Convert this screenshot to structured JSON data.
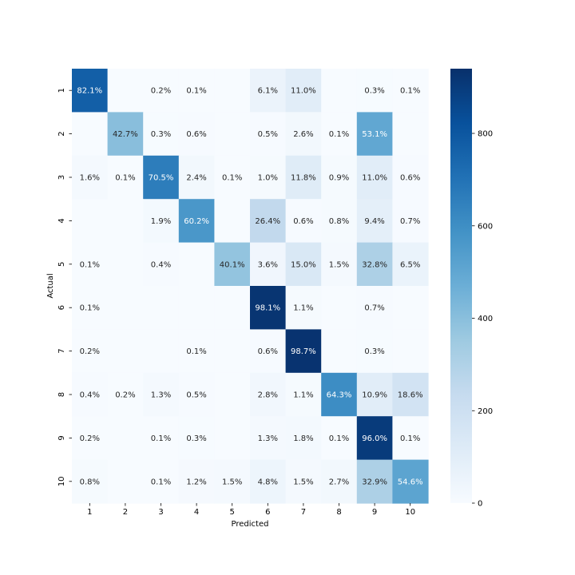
{
  "chart_data": {
    "type": "heatmap",
    "xlabel": "Predicted",
    "ylabel": "Actual",
    "x_labels": [
      "1",
      "2",
      "3",
      "4",
      "5",
      "6",
      "7",
      "8",
      "9",
      "10"
    ],
    "y_labels": [
      "1",
      "2",
      "3",
      "4",
      "5",
      "6",
      "7",
      "8",
      "9",
      "10"
    ],
    "colormap": "Blues",
    "colorbar": {
      "min": 0,
      "max": 940,
      "ticks": [
        0,
        200,
        400,
        600,
        800
      ]
    },
    "annotations": [
      [
        "82.1%",
        "",
        "0.2%",
        "0.1%",
        "",
        "6.1%",
        "11.0%",
        "",
        "0.3%",
        "0.1%"
      ],
      [
        "",
        "42.7%",
        "0.3%",
        "0.6%",
        "",
        "0.5%",
        "2.6%",
        "0.1%",
        "53.1%",
        ""
      ],
      [
        "1.6%",
        "0.1%",
        "70.5%",
        "2.4%",
        "0.1%",
        "1.0%",
        "11.8%",
        "0.9%",
        "11.0%",
        "0.6%"
      ],
      [
        "",
        "",
        "1.9%",
        "60.2%",
        "",
        "26.4%",
        "0.6%",
        "0.8%",
        "9.4%",
        "0.7%"
      ],
      [
        "0.1%",
        "",
        "0.4%",
        "",
        "40.1%",
        "3.6%",
        "15.0%",
        "1.5%",
        "32.8%",
        "6.5%"
      ],
      [
        "0.1%",
        "",
        "",
        "",
        "",
        "98.1%",
        "1.1%",
        "",
        "0.7%",
        ""
      ],
      [
        "0.2%",
        "",
        "",
        "0.1%",
        "",
        "0.6%",
        "98.7%",
        "",
        "0.3%",
        ""
      ],
      [
        "0.4%",
        "0.2%",
        "1.3%",
        "0.5%",
        "",
        "2.8%",
        "1.1%",
        "64.3%",
        "10.9%",
        "18.6%"
      ],
      [
        "0.2%",
        "",
        "0.1%",
        "0.3%",
        "",
        "1.3%",
        "1.8%",
        "0.1%",
        "96.0%",
        "0.1%"
      ],
      [
        "0.8%",
        "",
        "0.1%",
        "1.2%",
        "1.5%",
        "4.8%",
        "1.5%",
        "2.7%",
        "32.9%",
        "54.6%"
      ]
    ]
  }
}
